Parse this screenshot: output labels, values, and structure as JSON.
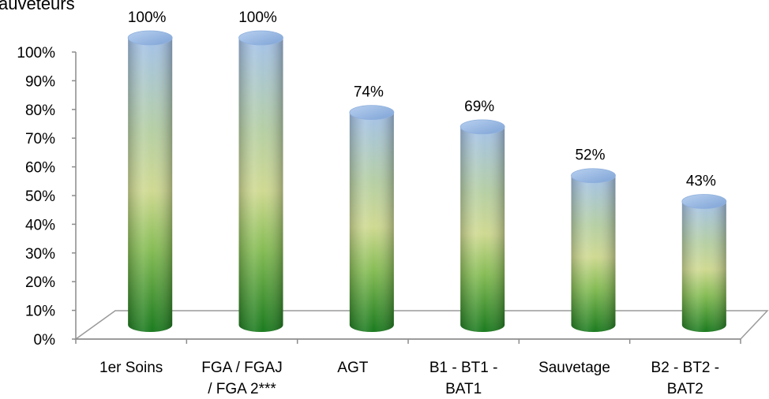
{
  "chart_data": {
    "type": "bar",
    "title": "auveteurs",
    "categories": [
      [
        "1er Soins"
      ],
      [
        "FGA / FGAJ",
        "/ FGA 2***"
      ],
      [
        "AGT"
      ],
      [
        "B1 - BT1 -",
        "BAT1"
      ],
      [
        "Sauvetage"
      ],
      [
        "B2 - BT2 -",
        "BAT2"
      ]
    ],
    "values": [
      100,
      100,
      74,
      69,
      52,
      43
    ],
    "data_labels": [
      "100%",
      "100%",
      "74%",
      "69%",
      "52%",
      "43%"
    ],
    "y_ticks": [
      "0%",
      "10%",
      "20%",
      "30%",
      "40%",
      "50%",
      "60%",
      "70%",
      "80%",
      "90%",
      "100%"
    ],
    "ylim": [
      0,
      100
    ],
    "bar_style": "3d-cylinder",
    "gradient_colors": [
      "#a4c2ea",
      "#cfd991",
      "#8fc15a",
      "#1a7a1e"
    ],
    "grid": false,
    "legend": "none"
  }
}
